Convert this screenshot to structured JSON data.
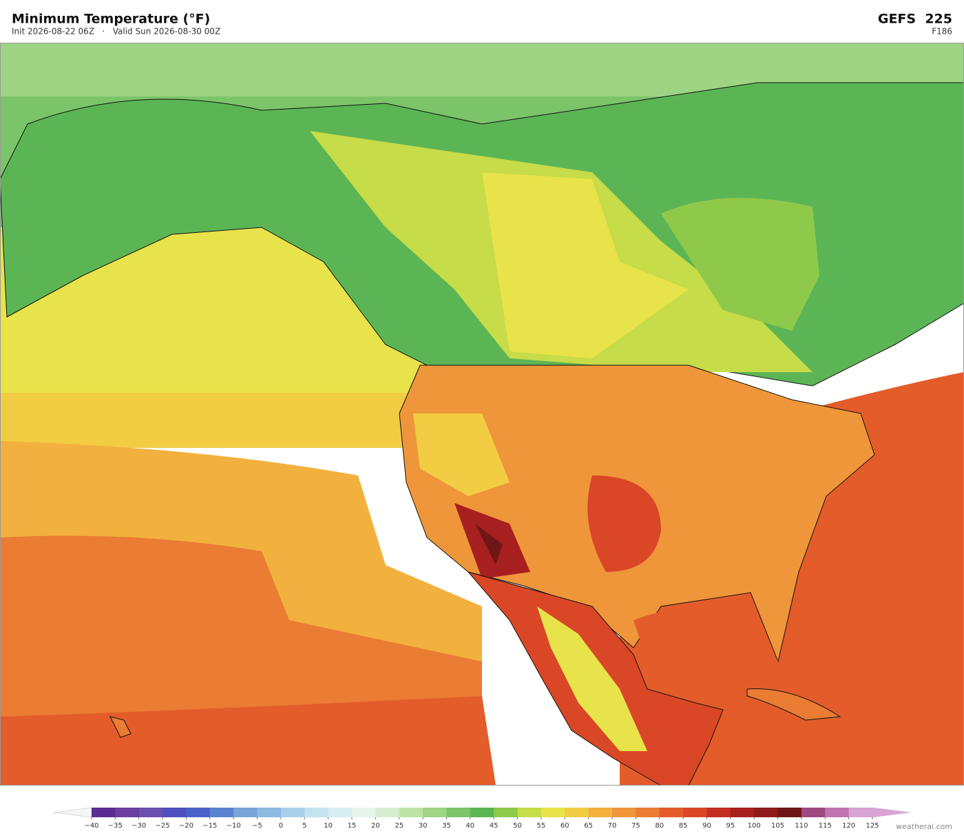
{
  "header": {
    "title": "Minimum Temperature  (°F)",
    "subtitle": "Init 2026-08-22 06Z   ·   Valid Sun 2026-08-30 00Z",
    "model": "GEFS  225",
    "forecast_hour": "F186"
  },
  "colorbar": {
    "ticks": [
      {
        "value": -40,
        "label": "−40"
      },
      {
        "value": -35,
        "label": "−35"
      },
      {
        "value": -30,
        "label": "−30"
      },
      {
        "value": -25,
        "label": "−25"
      },
      {
        "value": -20,
        "label": "−20"
      },
      {
        "value": -15,
        "label": "−15"
      },
      {
        "value": -10,
        "label": "−10"
      },
      {
        "value": -5,
        "label": "−5"
      },
      0,
      5,
      10,
      15,
      20,
      25,
      30,
      35,
      40,
      45,
      50,
      55,
      60,
      65,
      70,
      75,
      80,
      85,
      90,
      95,
      100,
      105,
      110,
      115,
      120,
      125
    ],
    "colors": [
      "#5a2d91",
      "#6b3fa0",
      "#6a4fb0",
      "#4f4fc0",
      "#4a62c8",
      "#5b82d0",
      "#7aa3d8",
      "#8fb8e0",
      "#a9d0ea",
      "#c4e2f0",
      "#d8eef2",
      "#e6f4ea",
      "#d6eecf",
      "#bde3a5",
      "#9ed484",
      "#7cc469",
      "#5cb555",
      "#8fc94a",
      "#c6dc48",
      "#e8e34a",
      "#f2cd44",
      "#f2b13e",
      "#ef963a",
      "#ea7c33",
      "#e35c2a",
      "#d94727",
      "#c52e22",
      "#a81f1f",
      "#8e1a1a",
      "#6e1616",
      "#9e4a80",
      "#bf76b0",
      "#d7a3d3"
    ],
    "under_color": "#f4f4f4",
    "over_color": "#dba2d6"
  },
  "credit": "weatherai.com"
}
